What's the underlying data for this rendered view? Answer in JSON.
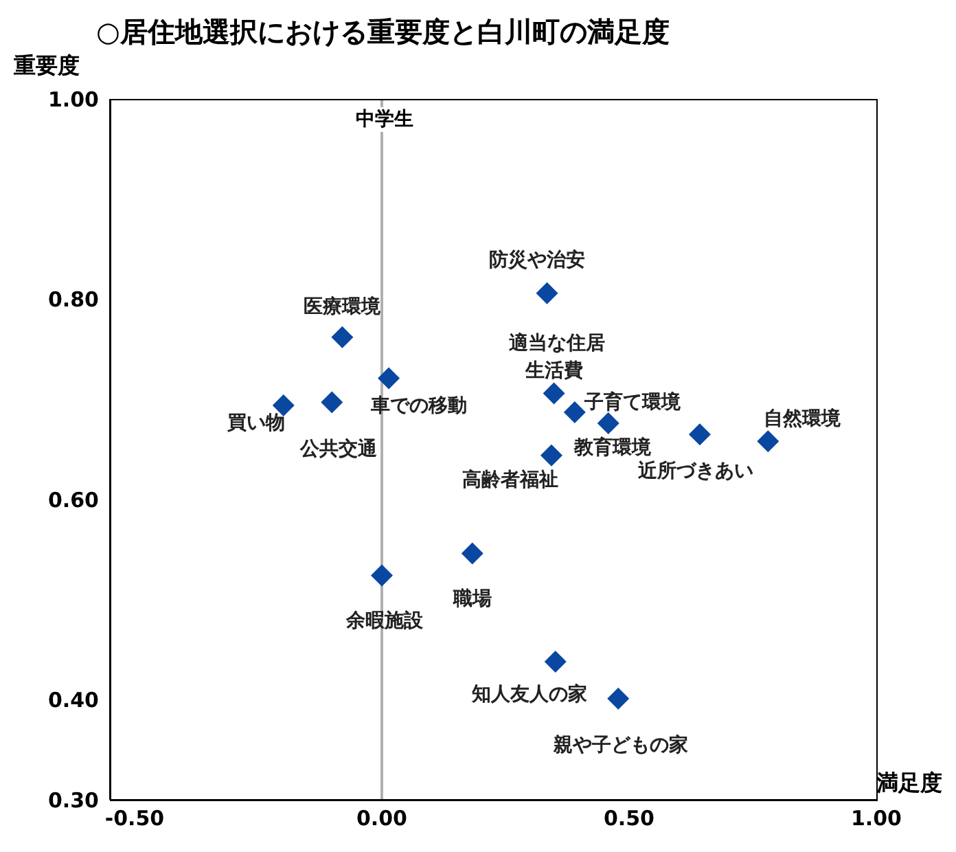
{
  "chart_data": {
    "type": "scatter",
    "title": "○居住地選択における重要度と白川町の満足度",
    "xlabel": "満足度",
    "ylabel": "重要度",
    "x": [
      -0.08,
      0.014,
      -0.101,
      -0.199,
      0.334,
      null,
      0.348,
      0.39,
      0.458,
      0.643,
      0.781,
      0.343,
      0.183,
      0.0,
      0.351,
      0.478
    ],
    "values": [
      0.762,
      0.721,
      0.697,
      0.694,
      0.806,
      null,
      0.706,
      0.687,
      0.676,
      0.665,
      0.658,
      0.644,
      0.546,
      0.524,
      0.438,
      0.401
    ],
    "color": "#0a47a0",
    "marker": "diamond",
    "xlim": [
      -0.55,
      1.0
    ],
    "xticks": [
      {
        "value": -0.5,
        "label": "-0.50"
      },
      {
        "value": 0,
        "label": "0.00"
      },
      {
        "value": 0.5,
        "label": "0.50"
      },
      {
        "value": 1.0,
        "label": "1.00"
      }
    ],
    "ylim": [
      0.3,
      1.0
    ],
    "yticks": [
      {
        "value": 0.3,
        "label": "0.30"
      },
      {
        "value": 0.4,
        "label": "0.40"
      },
      {
        "value": 0.6,
        "label": "0.60"
      },
      {
        "value": 0.8,
        "label": "0.80"
      },
      {
        "value": 1.0,
        "label": "1.00"
      }
    ],
    "ref_lines": [
      {
        "axis": "x",
        "value": 0,
        "color": "#b0b0b0"
      }
    ],
    "annotations": [
      {
        "text": "医療環境",
        "x": -0.08,
        "y": 0.762
      },
      {
        "text": "車での移動",
        "x": 0.014,
        "y": 0.721
      },
      {
        "text": "公共交通",
        "x": -0.101,
        "y": 0.697
      },
      {
        "text": "買い物",
        "x": -0.199,
        "y": 0.694
      },
      {
        "text": "防災や治安",
        "x": 0.334,
        "y": 0.806
      },
      {
        "text": "適当な住居",
        "x": 0.348,
        "y": 0.706
      },
      {
        "text": "生活費",
        "x": 0.348,
        "y": 0.706
      },
      {
        "text": "子育て環境",
        "x": 0.39,
        "y": 0.687
      },
      {
        "text": "教育環境",
        "x": 0.458,
        "y": 0.676
      },
      {
        "text": "近所づきあい",
        "x": 0.643,
        "y": 0.665
      },
      {
        "text": "自然環境",
        "x": 0.781,
        "y": 0.658
      },
      {
        "text": "高齢者福祉",
        "x": 0.343,
        "y": 0.644
      },
      {
        "text": "職場",
        "x": 0.183,
        "y": 0.546
      },
      {
        "text": "余暇施設",
        "x": 0.0,
        "y": 0.524
      },
      {
        "text": "知人友人の家",
        "x": 0.351,
        "y": 0.438
      },
      {
        "text": "親や子どもの家",
        "x": 0.478,
        "y": 0.401
      },
      "中学生"
    ]
  }
}
